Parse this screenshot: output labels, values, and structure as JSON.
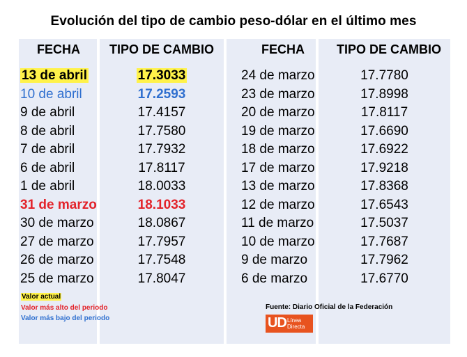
{
  "title": "Evolución del tipo de cambio peso-dólar en el último mes",
  "headers": {
    "fecha_left": "FECHA",
    "tipo_left": "TIPO DE CAMBIO",
    "fecha_right": "FECHA",
    "tipo_right": "TIPO DE CAMBIO"
  },
  "left_rows": [
    {
      "fecha": "13 de abril",
      "tipo": "17.3033"
    },
    {
      "fecha": "10 de abril",
      "tipo": "17.2593"
    },
    {
      "fecha": "9 de abril",
      "tipo": "17.4157"
    },
    {
      "fecha": "8 de abril",
      "tipo": "17.7580"
    },
    {
      "fecha": "7 de abril",
      "tipo": "17.7932"
    },
    {
      "fecha": "6 de abril",
      "tipo": "17.8117"
    },
    {
      "fecha": "1 de abril",
      "tipo": "18.0033"
    },
    {
      "fecha": "31 de marzo",
      "tipo": "18.1033"
    },
    {
      "fecha": "30 de marzo",
      "tipo": "18.0867"
    },
    {
      "fecha": "27 de marzo",
      "tipo": "17.7957"
    },
    {
      "fecha": "26 de marzo",
      "tipo": "17.7548"
    },
    {
      "fecha": "25 de marzo",
      "tipo": "17.8047"
    }
  ],
  "right_rows": [
    {
      "fecha": "24 de marzo",
      "tipo": "17.7780"
    },
    {
      "fecha": "23 de marzo",
      "tipo": "17.8998"
    },
    {
      "fecha": "20 de marzo",
      "tipo": "17.8117"
    },
    {
      "fecha": "19 de marzo",
      "tipo": "17.6690"
    },
    {
      "fecha": "18 de marzo",
      "tipo": "17.6922"
    },
    {
      "fecha": "17 de marzo",
      "tipo": "17.9218"
    },
    {
      "fecha": "13 de marzo",
      "tipo": "17.8368"
    },
    {
      "fecha": "12 de marzo",
      "tipo": "17.6543"
    },
    {
      "fecha": "11 de marzo",
      "tipo": "17.5037"
    },
    {
      "fecha": "10 de marzo",
      "tipo": "17.7687"
    },
    {
      "fecha": "9 de marzo",
      "tipo": "17.7962"
    },
    {
      "fecha": "6 de marzo",
      "tipo": "17.6770"
    }
  ],
  "legend": {
    "current": "Valor actual",
    "highest": "Valor más alto del periodo",
    "lowest": "Valor más bajo del periodo"
  },
  "source": "Fuente: Diario Oficial de la Federación",
  "logo": {
    "mark": "UD",
    "line1": "Línea",
    "line2": "Directa"
  },
  "colors": {
    "current_highlight": "#fff24a",
    "highest": "#e3232a",
    "lowest": "#2f6fcf",
    "column_background": "#e8ecf6",
    "logo_background": "#e8531f"
  }
}
